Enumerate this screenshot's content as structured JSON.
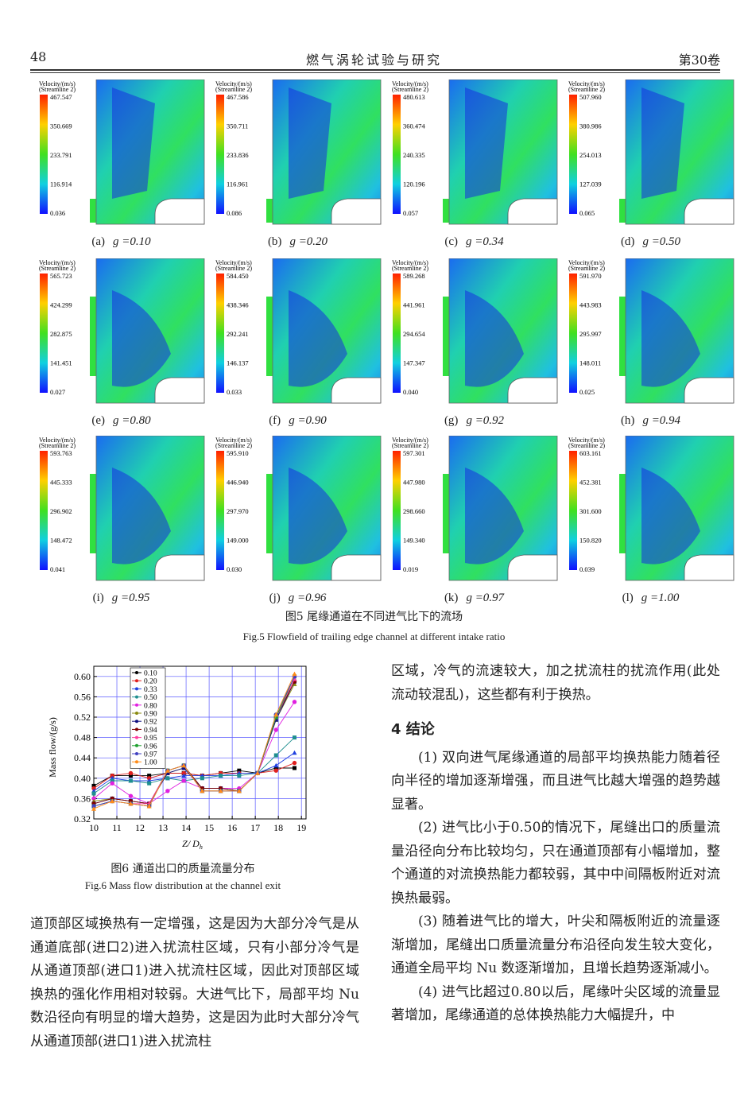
{
  "header": {
    "page_number": "48",
    "journal": "燃气涡轮试验与研究",
    "volume": "第30卷"
  },
  "figure5": {
    "caption_cn": "图5 尾缘通道在不同进气比下的流场",
    "caption_en": "Fig.5 Flowfield of trailing edge channel at different intake ratio",
    "legend_title": "Velocity/(m/s)",
    "legend_subtitle": "(Streamline 2)",
    "panels": [
      {
        "label": "(a)",
        "ratio": "g =0.10",
        "levels": [
          "467.547",
          "350.669",
          "233.791",
          "116.914",
          "0.036"
        ]
      },
      {
        "label": "(b)",
        "ratio": "g =0.20",
        "levels": [
          "467.586",
          "350.711",
          "233.836",
          "116.961",
          "0.086"
        ]
      },
      {
        "label": "(c)",
        "ratio": "g =0.34",
        "levels": [
          "480.613",
          "360.474",
          "240.335",
          "120.196",
          "0.057"
        ]
      },
      {
        "label": "(d)",
        "ratio": "g =0.50",
        "levels": [
          "507.960",
          "380.986",
          "254.013",
          "127.039",
          "0.065"
        ]
      },
      {
        "label": "(e)",
        "ratio": "g =0.80",
        "levels": [
          "565.723",
          "424.299",
          "282.875",
          "141.451",
          "0.027"
        ]
      },
      {
        "label": "(f)",
        "ratio": "g =0.90",
        "levels": [
          "584.450",
          "438.346",
          "292.241",
          "146.137",
          "0.033"
        ]
      },
      {
        "label": "(g)",
        "ratio": "g =0.92",
        "levels": [
          "589.268",
          "441.961",
          "294.654",
          "147.347",
          "0.040"
        ]
      },
      {
        "label": "(h)",
        "ratio": "g =0.94",
        "levels": [
          "591.970",
          "443.983",
          "295.997",
          "148.011",
          "0.025"
        ]
      },
      {
        "label": "(i)",
        "ratio": "g =0.95",
        "levels": [
          "593.763",
          "445.333",
          "296.902",
          "148.472",
          "0.041"
        ]
      },
      {
        "label": "(j)",
        "ratio": "g =0.96",
        "levels": [
          "595.910",
          "446.940",
          "297.970",
          "149.000",
          "0.030"
        ]
      },
      {
        "label": "(k)",
        "ratio": "g =0.97",
        "levels": [
          "597.301",
          "447.980",
          "298.660",
          "149.340",
          "0.019"
        ]
      },
      {
        "label": "(l)",
        "ratio": "g =1.00",
        "levels": [
          "603.161",
          "452.381",
          "301.600",
          "150.820",
          "0.039"
        ]
      }
    ]
  },
  "figure6": {
    "caption_cn": "图6 通道出口的质量流量分布",
    "caption_en": "Fig.6 Mass flow distribution at the channel exit",
    "chart_data": {
      "type": "line",
      "x_label": "Z/ D",
      "x_label_sub": "h",
      "y_label": "Mass flow/(g/s)",
      "x": [
        10,
        10.8,
        11.6,
        12.4,
        13.2,
        13.9,
        14.7,
        15.5,
        16.3,
        17.1,
        17.9,
        18.7
      ],
      "xlim": [
        10,
        19.2
      ],
      "xticks": [
        10,
        11,
        12,
        13,
        14,
        15,
        16,
        17,
        18,
        19
      ],
      "ylim": [
        0.32,
        0.62
      ],
      "yticks": [
        0.32,
        0.36,
        {
          "value": 0.4,
          "label": "0.40"
        },
        0.44,
        0.48,
        0.52,
        0.56,
        {
          "value": 0.6,
          "label": "0.60"
        }
      ],
      "grid": true,
      "grid_color": "#5a5aff",
      "legend": "top-left",
      "series": [
        {
          "name": "0.10",
          "color": "#000000",
          "values": [
            0.385,
            0.405,
            0.405,
            0.405,
            0.41,
            0.41,
            0.405,
            0.41,
            0.415,
            0.41,
            0.42,
            0.42
          ]
        },
        {
          "name": "0.20",
          "color": "#e0201f",
          "values": [
            0.38,
            0.405,
            0.41,
            0.4,
            0.41,
            0.41,
            0.405,
            0.41,
            0.41,
            0.41,
            0.415,
            0.43
          ]
        },
        {
          "name": "0.33",
          "color": "#1f3fe0",
          "values": [
            0.375,
            0.4,
            0.395,
            0.395,
            0.4,
            0.405,
            0.405,
            0.405,
            0.41,
            0.41,
            0.425,
            0.45
          ]
        },
        {
          "name": "0.50",
          "color": "#1f8f8f",
          "values": [
            0.37,
            0.395,
            0.395,
            0.39,
            0.4,
            0.395,
            0.4,
            0.405,
            0.405,
            0.41,
            0.445,
            0.48
          ]
        },
        {
          "name": "0.80",
          "color": "#e020e0",
          "values": [
            0.36,
            0.39,
            0.365,
            0.35,
            0.375,
            0.395,
            0.38,
            0.38,
            0.38,
            0.41,
            0.495,
            0.55
          ]
        },
        {
          "name": "0.90",
          "color": "#8a8a10",
          "values": [
            0.355,
            0.36,
            0.355,
            0.35,
            0.41,
            0.42,
            0.38,
            0.38,
            0.375,
            0.41,
            0.515,
            0.585
          ]
        },
        {
          "name": "0.92",
          "color": "#101080",
          "values": [
            0.35,
            0.36,
            0.355,
            0.35,
            0.41,
            0.42,
            0.38,
            0.38,
            0.375,
            0.41,
            0.515,
            0.59
          ]
        },
        {
          "name": "0.94",
          "color": "#800000",
          "values": [
            0.35,
            0.36,
            0.355,
            0.35,
            0.415,
            0.425,
            0.38,
            0.38,
            0.375,
            0.41,
            0.52,
            0.59
          ]
        },
        {
          "name": "0.95",
          "color": "#ff3fa0",
          "values": [
            0.345,
            0.355,
            0.35,
            0.35,
            0.415,
            0.425,
            0.375,
            0.375,
            0.375,
            0.41,
            0.52,
            0.595
          ]
        },
        {
          "name": "0.96",
          "color": "#1fa02f",
          "values": [
            0.345,
            0.355,
            0.35,
            0.345,
            0.415,
            0.425,
            0.375,
            0.375,
            0.375,
            0.41,
            0.52,
            0.6
          ]
        },
        {
          "name": "0.97",
          "color": "#4040c0",
          "values": [
            0.345,
            0.355,
            0.35,
            0.345,
            0.415,
            0.425,
            0.375,
            0.375,
            0.375,
            0.41,
            0.525,
            0.6
          ]
        },
        {
          "name": "1.00",
          "color": "#ff8c1a",
          "values": [
            0.34,
            0.355,
            0.35,
            0.345,
            0.415,
            0.425,
            0.375,
            0.375,
            0.375,
            0.41,
            0.525,
            0.605
          ]
        }
      ]
    }
  },
  "left_column": [
    "道顶部区域换热有一定增强，这是因为大部分冷气是从通道底部(进口2)进入扰流柱区域，只有小部分冷气是从通道顶部(进口1)进入扰流柱区域，因此对顶部区域换热的强化作用相对较弱。大进气比下，局部平均 Nu 数沿径向有明显的增大趋势，这是因为此时大部分冷气从通道顶部(进口1)进入扰流柱"
  ],
  "right_column": {
    "paragraph_0": "区域，冷气的流速较大，加之扰流柱的扰流作用(此处流动较混乱)，这些都有利于换热。",
    "heading": "4 结论",
    "conclusions": [
      "(1) 双向进气尾缘通道的局部平均换热能力随着径向半径的增加逐渐增强，而且进气比越大增强的趋势越显著。",
      "(2) 进气比小于0.50的情况下，尾缝出口的质量流量沿径向分布比较均匀，只在通道顶部有小幅增加，整个通道的对流换热能力都较弱，其中中间隔板附近对流换热最弱。",
      "(3) 随着进气比的增大，叶尖和隔板附近的流量逐渐增加，尾缝出口质量流量分布沿径向发生较大变化，通道全局平均 Nu 数逐渐增加，且增长趋势逐渐减小。",
      "(4) 进气比超过0.80以后，尾缘叶尖区域的流量显著增加，尾缘通道的总体换热能力大幅提升，中"
    ]
  }
}
